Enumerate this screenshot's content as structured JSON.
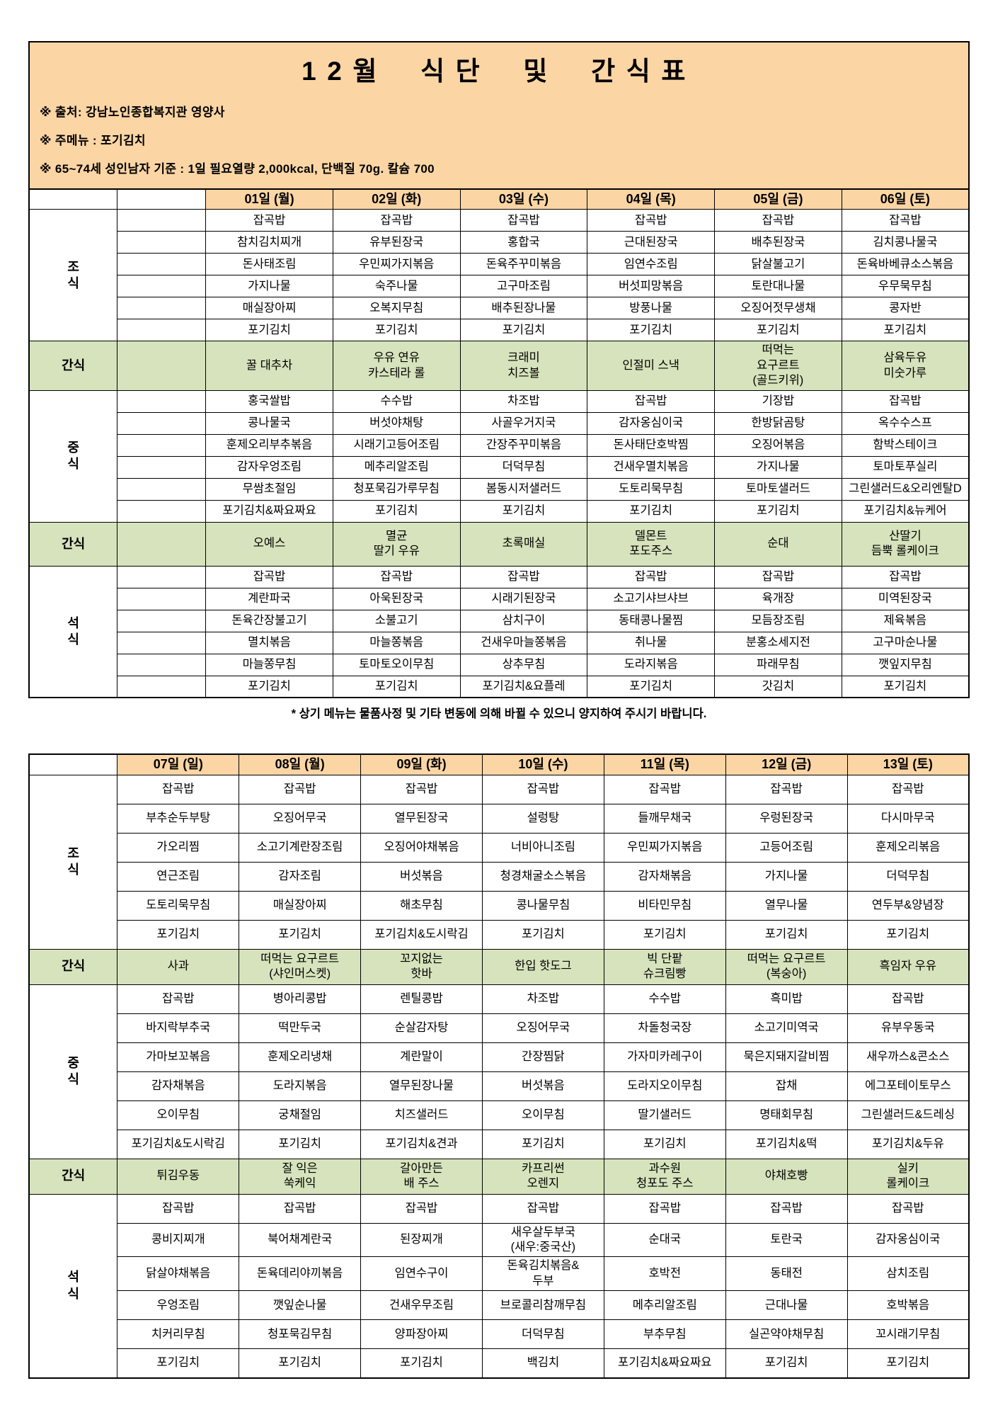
{
  "title": "12월 식단 및 간식표",
  "notes": [
    "※ 출처: 강남노인종합복지관 영양사",
    "※ 주메뉴 : 포기김치",
    "※ 65~74세 성인남자 기준 : 1일 필요열량 2,000kcal, 단백질 70g. 칼슘 700"
  ],
  "footnote": "* 상기 메뉴는 물품사정 및 기타 변동에 의해 바뀔 수 있으니 양지하여 주시기 바랍니다.",
  "colors": {
    "header_bg": "#FBD5A4",
    "snack_bg": "#D6E3BC",
    "border": "#000000"
  },
  "tables": [
    {
      "spacer_column": true,
      "days": [
        "01일 (월)",
        "02일 (화)",
        "03일 (수)",
        "04일 (목)",
        "05일 (금)",
        "06일 (토)"
      ],
      "sections": [
        {
          "label": "조\n식",
          "type": "meal",
          "rows": [
            [
              "잡곡밥",
              "잡곡밥",
              "잡곡밥",
              "잡곡밥",
              "잡곡밥",
              "잡곡밥"
            ],
            [
              "참치김치찌개",
              "유부된장국",
              "홍합국",
              "근대된장국",
              "배추된장국",
              "김치콩나물국"
            ],
            [
              "돈사태조림",
              "우민찌가지볶음",
              "돈육주꾸미볶음",
              "임연수조림",
              "닭살불고기",
              "돈육바베큐소스볶음"
            ],
            [
              "가지나물",
              "숙주나물",
              "고구마조림",
              "버섯피망볶음",
              "토란대나물",
              "우무묵무침"
            ],
            [
              "매실장아찌",
              "오복지무침",
              "배추된장나물",
              "방풍나물",
              "오징어젓무생채",
              "콩자반"
            ],
            [
              "포기김치",
              "포기김치",
              "포기김치",
              "포기김치",
              "포기김치",
              "포기김치"
            ]
          ]
        },
        {
          "label": "간식",
          "type": "snack",
          "rows": [
            [
              "꿀 대추차",
              "우유 연유\n카스테라 롤",
              "크래미\n치즈볼",
              "인절미 스낵",
              "떠먹는\n요구르트\n(골드키위)",
              "삼육두유\n미숫가루"
            ]
          ]
        },
        {
          "label": "중\n식",
          "type": "meal",
          "rows": [
            [
              "홍국쌀밥",
              "수수밥",
              "차조밥",
              "잡곡밥",
              "기장밥",
              "잡곡밥"
            ],
            [
              "콩나물국",
              "버섯야채탕",
              "사골우거지국",
              "감자옹심이국",
              "한방닭곰탕",
              "옥수수스프"
            ],
            [
              "훈제오리부추볶음",
              "시래기고등어조림",
              "간장주꾸미볶음",
              "돈사태단호박찜",
              "오징어볶음",
              "함박스테이크"
            ],
            [
              "감자우엉조림",
              "메추리알조림",
              "더덕무침",
              "건새우멸치볶음",
              "가지나물",
              "토마토푸실리"
            ],
            [
              "무쌈초절임",
              "청포묵김가루무침",
              "봄동시저샐러드",
              "도토리묵무침",
              "토마토샐러드",
              "그린샐러드&오리엔탈D"
            ],
            [
              "포기김치&짜요짜요",
              "포기김치",
              "포기김치",
              "포기김치",
              "포기김치",
              "포기김치&뉴케어"
            ]
          ]
        },
        {
          "label": "간식",
          "type": "snack",
          "rows": [
            [
              "오예스",
              "멸균\n딸기 우유",
              "초록매실",
              "델몬트\n포도주스",
              "순대",
              "산딸기\n듬뿍 롤케이크"
            ]
          ]
        },
        {
          "label": "석\n식",
          "type": "meal",
          "rows": [
            [
              "잡곡밥",
              "잡곡밥",
              "잡곡밥",
              "잡곡밥",
              "잡곡밥",
              "잡곡밥"
            ],
            [
              "계란파국",
              "아욱된장국",
              "시래기된장국",
              "소고기샤브샤브",
              "육개장",
              "미역된장국"
            ],
            [
              "돈육간장불고기",
              "소불고기",
              "삼치구이",
              "동태콩나물찜",
              "모듬장조림",
              "제육볶음"
            ],
            [
              "멸치볶음",
              "마늘쫑볶음",
              "건새우마늘쫑볶음",
              "취나물",
              "분홍소세지전",
              "고구마순나물"
            ],
            [
              "마늘쫑무침",
              "토마토오이무침",
              "상추무침",
              "도라지볶음",
              "파래무침",
              "깻잎지무침"
            ],
            [
              "포기김치",
              "포기김치",
              "포기김치&요플레",
              "포기김치",
              "갓김치",
              "포기김치"
            ]
          ]
        }
      ]
    },
    {
      "spacer_column": false,
      "days": [
        "07일 (일)",
        "08일 (월)",
        "09일 (화)",
        "10일 (수)",
        "11일 (목)",
        "12일 (금)",
        "13일 (토)"
      ],
      "sections": [
        {
          "label": "조\n식",
          "type": "meal",
          "rows": [
            [
              "잡곡밥",
              "잡곡밥",
              "잡곡밥",
              "잡곡밥",
              "잡곡밥",
              "잡곡밥",
              "잡곡밥"
            ],
            [
              "부추순두부탕",
              "오징어무국",
              "열무된장국",
              "설렁탕",
              "들깨무채국",
              "우렁된장국",
              "다시마무국"
            ],
            [
              "가오리찜",
              "소고기계란장조림",
              "오징어야채볶음",
              "너비아니조림",
              "우민찌가지볶음",
              "고등어조림",
              "훈제오리볶음"
            ],
            [
              "연근조림",
              "감자조림",
              "버섯볶음",
              "청경채굴소스볶음",
              "감자채볶음",
              "가지나물",
              "더덕무침"
            ],
            [
              "도토리묵무침",
              "매실장아찌",
              "해초무침",
              "콩나물무침",
              "비타민무침",
              "열무나물",
              "연두부&양념장"
            ],
            [
              "포기김치",
              "포기김치",
              "포기김치&도시락김",
              "포기김치",
              "포기김치",
              "포기김치",
              "포기김치"
            ]
          ]
        },
        {
          "label": "간식",
          "type": "snack",
          "rows": [
            [
              "사과",
              "떠먹는 요구르트\n(샤인머스켓)",
              "꼬지없는\n핫바",
              "한입 핫도그",
              "빅 단팥\n슈크림빵",
              "떠먹는 요구르트\n(복숭아)",
              "흑임자 우유"
            ]
          ]
        },
        {
          "label": "중\n식",
          "type": "meal",
          "rows": [
            [
              "잡곡밥",
              "병아리콩밥",
              "렌틸콩밥",
              "차조밥",
              "수수밥",
              "흑미밥",
              "잡곡밥"
            ],
            [
              "바지락부추국",
              "떡만두국",
              "순살감자탕",
              "오징어무국",
              "차돌청국장",
              "소고기미역국",
              "유부우동국"
            ],
            [
              "가마보꼬볶음",
              "훈제오리냉채",
              "계란말이",
              "간장찜닭",
              "가자미카레구이",
              "묵은지돼지갈비찜",
              "새우까스&콘소스"
            ],
            [
              "감자채볶음",
              "도라지볶음",
              "열무된장나물",
              "버섯볶음",
              "도라지오이무침",
              "잡채",
              "에그포테이토무스"
            ],
            [
              "오이무침",
              "궁채절임",
              "치즈샐러드",
              "오이무침",
              "딸기샐러드",
              "명태회무침",
              "그린샐러드&드레싱"
            ],
            [
              "포기김치&도시락김",
              "포기김치",
              "포기김치&견과",
              "포기김치",
              "포기김치",
              "포기김치&떡",
              "포기김치&두유"
            ]
          ]
        },
        {
          "label": "간식",
          "type": "snack",
          "rows": [
            [
              "튀김우동",
              "잘 익은\n쑥케익",
              "갈아만든\n배 주스",
              "카프리썬\n오렌지",
              "과수원\n청포도 주스",
              "야채호빵",
              "실키\n롤케이크"
            ]
          ]
        },
        {
          "label": "석\n식",
          "type": "meal",
          "rows": [
            [
              "잡곡밥",
              "잡곡밥",
              "잡곡밥",
              "잡곡밥",
              "잡곡밥",
              "잡곡밥",
              "잡곡밥"
            ],
            [
              "콩비지찌개",
              "북어채계란국",
              "된장찌개",
              "새우살두부국\n(새우:중국산)",
              "순대국",
              "토란국",
              "감자옹심이국"
            ],
            [
              "닭살야채볶음",
              "돈육데리야끼볶음",
              "임연수구이",
              "돈육김치볶음&\n두부",
              "호박전",
              "동태전",
              "삼치조림"
            ],
            [
              "우엉조림",
              "깻잎순나물",
              "건새우무조림",
              "브로콜리참깨무침",
              "메추리알조림",
              "근대나물",
              "호박볶음"
            ],
            [
              "치커리무침",
              "청포묵김무침",
              "양파장아찌",
              "더덕무침",
              "부추무침",
              "실곤약야채무침",
              "꼬시래기무침"
            ],
            [
              "포기김치",
              "포기김치",
              "포기김치",
              "백김치",
              "포기김치&짜요짜요",
              "포기김치",
              "포기김치"
            ]
          ]
        }
      ]
    }
  ]
}
